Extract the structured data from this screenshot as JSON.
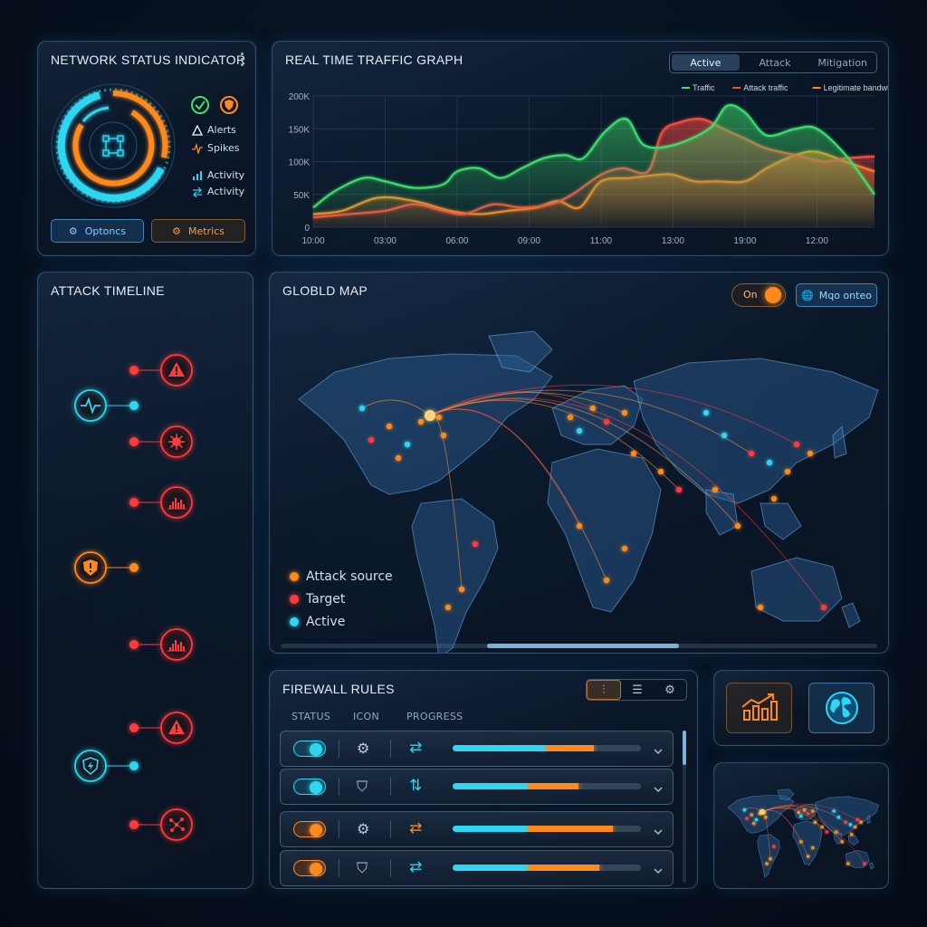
{
  "network_status": {
    "title": "NETWORK STATUS INDICATOR",
    "menu_icon": "kebab-menu-icon",
    "legend": [
      {
        "icon": "warning-icon",
        "label": "Alerts",
        "color": "#ffffff"
      },
      {
        "icon": "spike-icon",
        "label": "Spikes",
        "color": "#ff8a1c"
      },
      {
        "icon": "bar-chart-icon",
        "label": "Activity",
        "color": "#2fd6f2"
      },
      {
        "icon": "transfer-icon",
        "label": "Activity",
        "color": "#2fd6f2"
      }
    ],
    "buttons": {
      "options": "Optoncs",
      "metrics": "Metrics"
    }
  },
  "traffic_graph": {
    "title": "REAL TIME TRAFFIC GRAPH",
    "tabs": [
      {
        "label": "Active",
        "active": true
      },
      {
        "label": "Attack",
        "active": false
      },
      {
        "label": "Mitigation",
        "active": false
      }
    ]
  },
  "chart_data": {
    "type": "area",
    "title": "REAL TIME TRAFFIC GRAPH",
    "xlabel": "",
    "ylabel": "",
    "categories": [
      "10:00",
      "03:00",
      "06:00",
      "09:00",
      "11:00",
      "13:00",
      "19:00",
      "12:00"
    ],
    "y_ticks": [
      "0",
      "50K",
      "100K",
      "150K",
      "200K"
    ],
    "ylim": [
      0,
      200000
    ],
    "grid": true,
    "legend_position": "top-right",
    "series": [
      {
        "name": "Traffic",
        "color": "#3ee06a",
        "x": [
          0,
          0.3,
          0.7,
          1,
          1.4,
          1.8,
          2,
          2.3,
          2.6,
          2.9,
          3.2,
          3.5,
          3.75,
          4.05,
          4.35,
          4.6,
          5,
          5.5,
          5.75,
          6,
          6.3,
          6.7,
          7,
          7.4,
          7.8
        ],
        "values": [
          30000,
          55000,
          75000,
          70000,
          60000,
          65000,
          85000,
          90000,
          75000,
          90000,
          105000,
          110000,
          105000,
          145000,
          165000,
          125000,
          125000,
          150000,
          185000,
          175000,
          140000,
          150000,
          150000,
          110000,
          50000
        ]
      },
      {
        "name": "Attack traffic",
        "color": "#ff4b3e",
        "x": [
          0,
          0.5,
          1,
          1.4,
          1.8,
          2.1,
          2.5,
          2.9,
          3.3,
          3.6,
          4.0,
          4.3,
          4.65,
          4.85,
          5.1,
          5.4,
          5.7,
          6.0,
          6.3,
          6.7,
          7.1,
          7.4,
          7.8
        ],
        "values": [
          15000,
          20000,
          25000,
          35000,
          25000,
          20000,
          35000,
          30000,
          35000,
          50000,
          80000,
          90000,
          85000,
          145000,
          160000,
          165000,
          150000,
          135000,
          120000,
          110000,
          100000,
          105000,
          108000
        ]
      },
      {
        "name": "Legitimate bandwidth",
        "color": "#ff8a1c",
        "x": [
          0,
          0.4,
          0.9,
          1.4,
          1.9,
          2.3,
          2.7,
          3.1,
          3.4,
          3.7,
          4.0,
          4.4,
          4.8,
          5.0,
          5.3,
          5.6,
          6.0,
          6.3,
          6.7,
          7.0,
          7.4,
          7.8
        ],
        "values": [
          20000,
          25000,
          45000,
          40000,
          25000,
          20000,
          25000,
          30000,
          40000,
          30000,
          70000,
          75000,
          80000,
          80000,
          70000,
          70000,
          70000,
          90000,
          110000,
          115000,
          100000,
          85000
        ]
      }
    ]
  },
  "attack_timeline": {
    "title": "ATTACK TIMELINE",
    "events": [
      {
        "y": 108,
        "side": "right",
        "icon": "warning-icon",
        "color": "#ff3b3b"
      },
      {
        "y": 147,
        "side": "left",
        "icon": "pulse-icon",
        "color": "#2fd6f2"
      },
      {
        "y": 187,
        "side": "right",
        "icon": "virus-icon",
        "color": "#ff3b3b"
      },
      {
        "y": 254,
        "side": "right",
        "icon": "spike-chart-icon",
        "color": "#ff3b3b"
      },
      {
        "y": 326,
        "side": "left",
        "icon": "shield-alert-icon",
        "color": "#ff8a1c"
      },
      {
        "y": 411,
        "side": "right",
        "icon": "spike-chart-icon",
        "color": "#ff3b3b"
      },
      {
        "y": 503,
        "side": "right",
        "icon": "warning-icon",
        "color": "#ff3b3b"
      },
      {
        "y": 545,
        "side": "left",
        "icon": "shield-bolt-icon",
        "color": "#2fd6f2"
      },
      {
        "y": 610,
        "side": "right",
        "icon": "network-nodes-icon",
        "color": "#ff3b3b"
      }
    ]
  },
  "global_map": {
    "title": "GLOBLD MAP",
    "toggle_label": "On",
    "mode_button": "Mqo onteo",
    "legend": [
      {
        "label": "Attack source",
        "color": "#ff8a1c"
      },
      {
        "label": "Target",
        "color": "#ff3b3b"
      },
      {
        "label": "Active",
        "color": "#2fd6f2"
      }
    ]
  },
  "firewall_rules": {
    "title": "FIREWALL RULES",
    "columns": [
      "STATUS",
      "ICON",
      "PROGRESS"
    ],
    "toolbar": [
      "sliders-icon",
      "list-icon",
      "gear-icon"
    ],
    "rules": [
      {
        "toggle_color": "#2fd6f2",
        "icon": "gear-icon",
        "action_icon": "transfer-icon",
        "cyan_progress": 0.5,
        "orange_progress": 0.25
      },
      {
        "toggle_color": "#2fd6f2",
        "icon": "shield-check-icon",
        "action_icon": "up-down-icon",
        "cyan_progress": 0.4,
        "orange_progress": 0.27
      },
      {
        "toggle_color": "#ff8a1c",
        "icon": "gear-icon",
        "action_icon": "transfer-orange-icon",
        "cyan_progress": 0.4,
        "orange_progress": 0.45
      },
      {
        "toggle_color": "#ff8a1c",
        "icon": "shield-check-icon",
        "action_icon": "transfer-icon",
        "cyan_progress": 0.4,
        "orange_progress": 0.38
      }
    ]
  },
  "quick_panel": {
    "buttons": [
      "analytics-chart-icon",
      "globe-icon"
    ]
  }
}
